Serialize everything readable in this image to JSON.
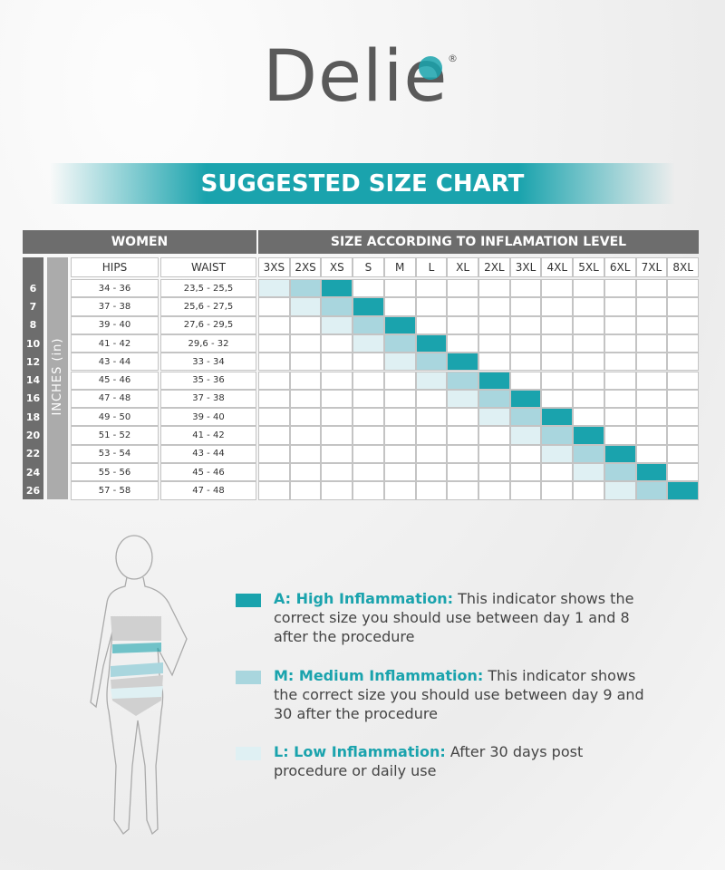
{
  "logo": {
    "name": "Delie",
    "mark": "®"
  },
  "banner": "SUGGESTED SIZE CHART",
  "table": {
    "group_headers": [
      "WOMEN",
      "SIZE ACCORDING TO INFLAMATION LEVEL"
    ],
    "side_label": "INCHES (in)",
    "columns": [
      "HIPS",
      "WAIST"
    ],
    "sizes": [
      "3XS",
      "2XS",
      "XS",
      "S",
      "M",
      "L",
      "XL",
      "2XL",
      "3XL",
      "4XL",
      "5XL",
      "6XL",
      "7XL",
      "8XL"
    ],
    "rows": [
      [
        "6",
        "34 - 36",
        "23,5 - 25,5"
      ],
      [
        "7",
        "37 - 38",
        "25,6 - 27,5"
      ],
      [
        "8",
        "39 - 40",
        "27,6 - 29,5"
      ],
      [
        "10",
        "41 - 42",
        "29,6 - 32"
      ],
      [
        "12",
        "43 - 44",
        "33 - 34"
      ],
      [
        "14",
        "45 - 46",
        "35 - 36"
      ],
      [
        "16",
        "47 - 48",
        "37 - 38"
      ],
      [
        "18",
        "49 - 50",
        "39 - 40"
      ],
      [
        "20",
        "51 - 52",
        "41 - 42"
      ],
      [
        "22",
        "53 - 54",
        "43 - 44"
      ],
      [
        "24",
        "55 - 56",
        "45 - 46"
      ],
      [
        "26",
        "57 - 58",
        "47 - 48"
      ]
    ]
  },
  "legend": [
    {
      "label": "A: High Inflammation:",
      "text": "This indicator shows the correct size you should use between day 1 and 8 after the procedure"
    },
    {
      "label": "M: Medium Inflammation:",
      "text": "This indicator shows the correct size you should use between day 9 and 30 after the procedure"
    },
    {
      "label": "L: Low Inflammation:",
      "text": "After 30 days post procedure or daily use"
    }
  ]
}
